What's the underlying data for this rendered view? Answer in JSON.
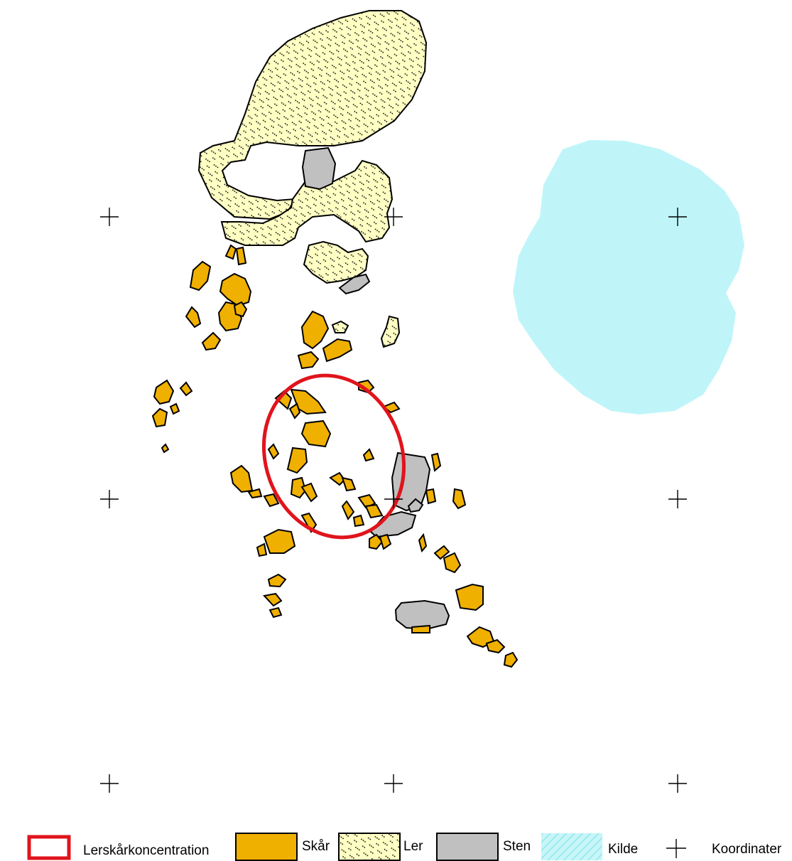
{
  "colors": {
    "skaar": "#F0B000",
    "ler": "#FFFFC4",
    "ler_pattern": "#000000",
    "sten": "#C0C0C0",
    "kilde": "#BFF5F8",
    "kilde_hatch": "#8EE8EE",
    "concentration": "#E0141C",
    "outline": "#000000"
  },
  "legend": {
    "concentration": "Lerskårkoncentration",
    "skaar": "Skår",
    "ler": "Ler",
    "sten": "Sten",
    "kilde": "Kilde",
    "koordinater": "Koordinater"
  }
}
